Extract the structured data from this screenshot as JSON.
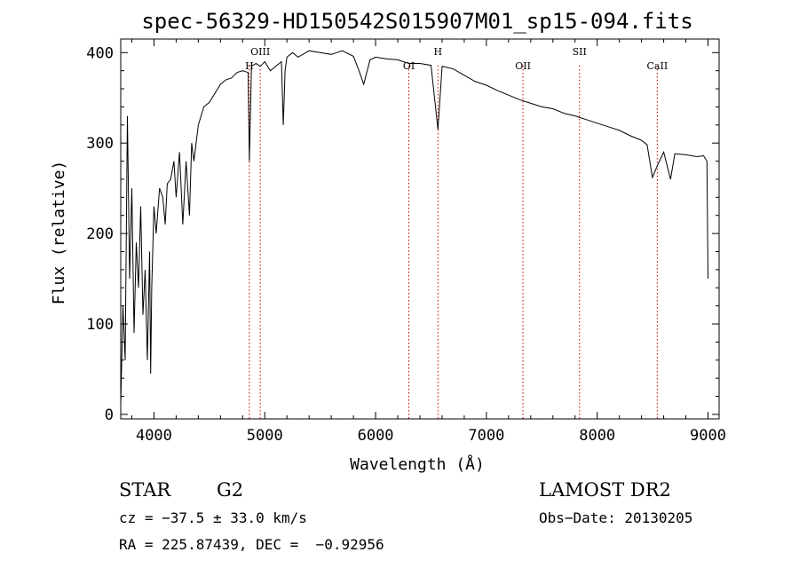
{
  "chart_data": {
    "type": "line",
    "title": "spec-56329-HD150542S015907M01_sp15-094.fits",
    "xlabel": "Wavelength (Å)",
    "ylabel": "Flux (relative)",
    "xlim": [
      3700,
      9100
    ],
    "ylim": [
      -5,
      415
    ],
    "x_ticks": [
      4000,
      5000,
      6000,
      7000,
      8000,
      9000
    ],
    "y_ticks": [
      0,
      100,
      200,
      300,
      400
    ],
    "grid": false,
    "series": [
      {
        "color": "#000000",
        "x": [
          3700,
          3720,
          3740,
          3760,
          3780,
          3800,
          3820,
          3840,
          3860,
          3880,
          3900,
          3920,
          3940,
          3960,
          3970,
          3980,
          4000,
          4020,
          4050,
          4080,
          4101,
          4120,
          4150,
          4180,
          4200,
          4230,
          4260,
          4290,
          4320,
          4340,
          4360,
          4400,
          4450,
          4500,
          4550,
          4600,
          4650,
          4700,
          4750,
          4800,
          4850,
          4861,
          4880,
          4920,
          4960,
          5000,
          5050,
          5100,
          5150,
          5167,
          5183,
          5200,
          5250,
          5300,
          5400,
          5500,
          5600,
          5700,
          5800,
          5850,
          5893,
          5950,
          6000,
          6100,
          6200,
          6300,
          6400,
          6500,
          6563,
          6600,
          6700,
          6800,
          6900,
          7000,
          7100,
          7200,
          7300,
          7400,
          7500,
          7600,
          7700,
          7800,
          7900,
          8000,
          8100,
          8200,
          8300,
          8400,
          8450,
          8498,
          8542,
          8600,
          8662,
          8700,
          8800,
          8900,
          8960,
          8990,
          9000
        ],
        "y": [
          10,
          120,
          60,
          330,
          150,
          250,
          90,
          190,
          140,
          230,
          110,
          160,
          60,
          180,
          45,
          140,
          230,
          200,
          250,
          240,
          210,
          255,
          260,
          280,
          240,
          290,
          210,
          280,
          220,
          300,
          280,
          320,
          340,
          345,
          355,
          365,
          370,
          372,
          378,
          380,
          378,
          280,
          385,
          388,
          385,
          390,
          380,
          385,
          390,
          320,
          380,
          395,
          400,
          395,
          402,
          400,
          398,
          402,
          396,
          380,
          365,
          392,
          395,
          393,
          392,
          388,
          388,
          386,
          315,
          385,
          382,
          375,
          368,
          364,
          358,
          353,
          348,
          344,
          340,
          338,
          333,
          330,
          326,
          322,
          318,
          314,
          308,
          303,
          298,
          262,
          275,
          290,
          260,
          288,
          287,
          285,
          286,
          280,
          150
        ]
      }
    ],
    "lines": [
      {
        "x": 4861,
        "label": "H"
      },
      {
        "x": 4959,
        "label": "OIII"
      },
      {
        "x": 6300,
        "label": "OI"
      },
      {
        "x": 6563,
        "label": "H"
      },
      {
        "x": 7330,
        "label": "OII"
      },
      {
        "x": 7840,
        "label": "SII"
      },
      {
        "x": 8542,
        "label": "CaII"
      }
    ]
  },
  "info": {
    "object_class": "STAR",
    "subclass": "G2",
    "survey": "LAMOST DR2",
    "cz": "cz = −37.5 ± 33.0 km/s",
    "obs_date": "Obs−Date: 20130205",
    "coords": "RA = 225.87439, DEC =  −0.92956"
  },
  "colors": {
    "spectrum": "#000000",
    "line_markers": "#cc0000",
    "axes": "#000000",
    "background": "#ffffff"
  }
}
